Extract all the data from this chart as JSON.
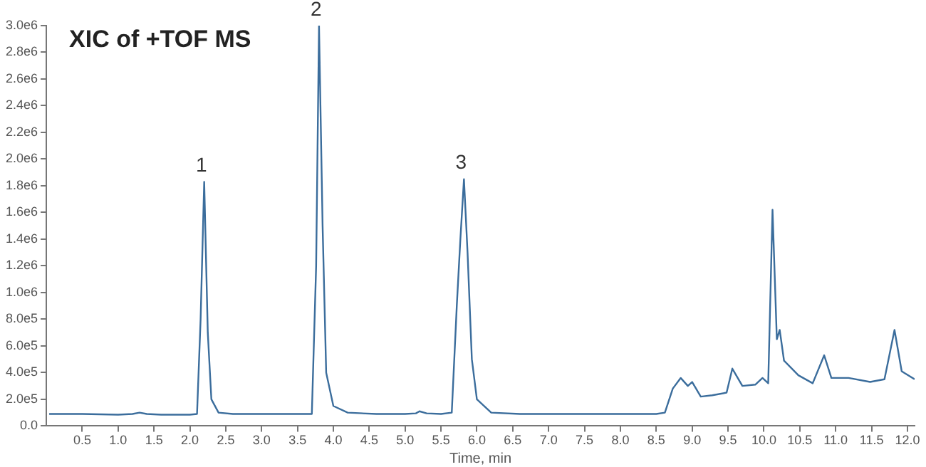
{
  "chart_data": {
    "type": "line",
    "title": "XIC of +TOF MS",
    "xlabel": "Time, min",
    "series": [
      {
        "color": "#3b6d9c",
        "x": [
          0.04,
          0.5,
          1.0,
          1.2,
          1.3,
          1.4,
          1.6,
          2.0,
          2.1,
          2.15,
          2.2,
          2.25,
          2.3,
          2.4,
          2.6,
          3.0,
          3.5,
          3.7,
          3.76,
          3.8,
          3.85,
          3.9,
          4.0,
          4.2,
          4.6,
          5.0,
          5.15,
          5.2,
          5.3,
          5.5,
          5.65,
          5.72,
          5.77,
          5.82,
          5.87,
          5.93,
          6.0,
          6.2,
          6.6,
          7.0,
          7.5,
          8.0,
          8.5,
          8.62,
          8.73,
          8.84,
          8.94,
          9.0,
          9.12,
          9.28,
          9.48,
          9.56,
          9.7,
          9.88,
          9.98,
          10.06,
          10.12,
          10.18,
          10.22,
          10.28,
          10.48,
          10.68,
          10.84,
          10.94,
          11.18,
          11.48,
          11.68,
          11.82,
          11.92,
          12.1
        ],
        "values": [
          90000,
          90000,
          85000,
          90000,
          100000,
          90000,
          85000,
          85000,
          90000,
          800000,
          1830000,
          700000,
          200000,
          100000,
          90000,
          90000,
          90000,
          90000,
          1200000,
          3000000,
          1500000,
          400000,
          150000,
          100000,
          90000,
          90000,
          95000,
          110000,
          95000,
          90000,
          100000,
          900000,
          1400000,
          1850000,
          1300000,
          500000,
          200000,
          100000,
          90000,
          90000,
          90000,
          90000,
          90000,
          100000,
          280000,
          360000,
          300000,
          330000,
          220000,
          230000,
          250000,
          430000,
          300000,
          310000,
          360000,
          320000,
          1620000,
          650000,
          720000,
          490000,
          380000,
          320000,
          530000,
          360000,
          360000,
          330000,
          350000,
          720000,
          410000,
          350000
        ]
      }
    ],
    "xlim": [
      0,
      12.1
    ],
    "xticks": [
      {
        "value": 0.5,
        "label": "0.5"
      },
      {
        "value": 1,
        "label": "1.0"
      },
      {
        "value": 1.5,
        "label": "1.5"
      },
      {
        "value": 2,
        "label": "2.0"
      },
      {
        "value": 2.5,
        "label": "2.5"
      },
      {
        "value": 3,
        "label": "3.0"
      },
      {
        "value": 3.5,
        "label": "3.5"
      },
      {
        "value": 4,
        "label": "4.0"
      },
      {
        "value": 4.5,
        "label": "4.5"
      },
      {
        "value": 5,
        "label": "5.0"
      },
      {
        "value": 5.5,
        "label": "5.5"
      },
      {
        "value": 6,
        "label": "6.0"
      },
      {
        "value": 6.5,
        "label": "6.5"
      },
      {
        "value": 7,
        "label": "7.0"
      },
      {
        "value": 7.5,
        "label": "7.5"
      },
      {
        "value": 8,
        "label": "8.0"
      },
      {
        "value": 8.5,
        "label": "8.5"
      },
      {
        "value": 9,
        "label": "9.0"
      },
      {
        "value": 9.5,
        "label": "9.5"
      },
      {
        "value": 10,
        "label": "10.0"
      },
      {
        "value": 10.5,
        "label": "10.5"
      },
      {
        "value": 11,
        "label": "11.0"
      },
      {
        "value": 11.5,
        "label": "11.5"
      },
      {
        "value": 12,
        "label": "12.0"
      }
    ],
    "ylim": [
      0,
      3000000
    ],
    "yticks": [
      {
        "value": 0,
        "label": "0.0"
      },
      {
        "value": 200000,
        "label": "2.0e5"
      },
      {
        "value": 400000,
        "label": "4.0e5"
      },
      {
        "value": 600000,
        "label": "6.0e5"
      },
      {
        "value": 800000,
        "label": "8.0e5"
      },
      {
        "value": 1000000,
        "label": "1.0e6"
      },
      {
        "value": 1200000,
        "label": "1.2e6"
      },
      {
        "value": 1400000,
        "label": "1.4e6"
      },
      {
        "value": 1600000,
        "label": "1.6e6"
      },
      {
        "value": 1800000,
        "label": "1.8e6"
      },
      {
        "value": 2000000,
        "label": "2.0e6"
      },
      {
        "value": 2200000,
        "label": "2.2e6"
      },
      {
        "value": 2400000,
        "label": "2.4e6"
      },
      {
        "value": 2600000,
        "label": "2.6e6"
      },
      {
        "value": 2800000,
        "label": "2.8e6"
      },
      {
        "value": 3000000,
        "label": "3.0e6"
      }
    ],
    "annotations": [
      {
        "text": "1",
        "x": 2.2,
        "y": 1830000
      },
      {
        "text": "2",
        "x": 3.8,
        "y": 3000000
      },
      {
        "text": "3",
        "x": 5.82,
        "y": 1850000
      }
    ],
    "grid": false,
    "legend": false,
    "marker": "none",
    "line_style": "solid"
  }
}
